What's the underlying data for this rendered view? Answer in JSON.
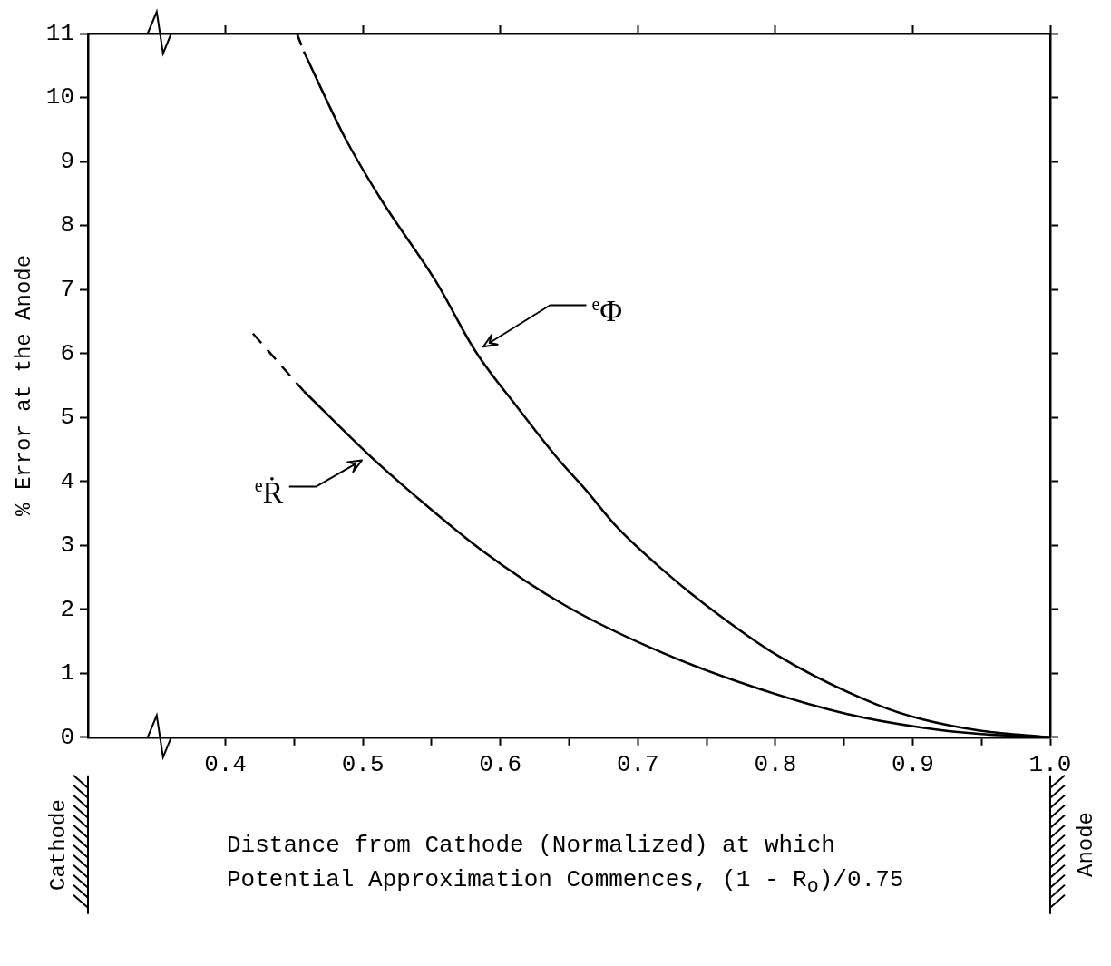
{
  "chart_data": {
    "type": "line",
    "ylabel": "% Error at the Anode",
    "xlabel": "Distance from Cathode (Normalized) at which Potential Approximation Commences, (1 - R$_{o}$)/0.75",
    "annotations": [
      "Cathode",
      "Anode"
    ],
    "marker": "none",
    "xlim": [
      0.3,
      1.0
    ],
    "xticks": [
      0.4,
      {
        "value": 0.45,
        "label": null
      },
      0.5,
      {
        "value": 0.55,
        "label": null
      },
      0.6,
      {
        "value": 0.65,
        "label": null
      },
      0.7,
      {
        "value": 0.75,
        "label": null
      },
      0.8,
      {
        "value": 0.85,
        "label": null
      },
      0.9,
      {
        "value": 0.95,
        "label": null
      },
      {
        "value": 1,
        "label": "1.0"
      }
    ],
    "ylim": [
      0,
      11
    ],
    "yticks": [
      0,
      1,
      2,
      3,
      4,
      5,
      6,
      7,
      8,
      9,
      10,
      11
    ],
    "series": [
      {
        "color": "#000000",
        "line_style": "dashed",
        "x": [
          0.452,
          0.457
        ],
        "values": [
          11.0,
          10.72
        ]
      },
      {
        "name": "$^{e}$Φ",
        "color": "#000000",
        "line_style": "solid",
        "x": [
          0.457,
          0.487,
          0.514,
          0.553,
          0.582,
          0.613,
          0.642,
          0.662,
          0.685,
          0.719,
          0.748,
          0.803,
          0.874,
          0.907,
          0.95,
          1.0
        ],
        "values": [
          10.72,
          9.37,
          8.38,
          7.13,
          6.03,
          5.14,
          4.35,
          3.87,
          3.28,
          2.6,
          2.09,
          1.26,
          0.51,
          0.28,
          0.1,
          0
        ]
      },
      {
        "color": "#000000",
        "line_style": "dashed",
        "x": [
          0.42,
          0.457
        ],
        "values": [
          6.31,
          5.41
        ]
      },
      {
        "name": "$^{e}$Ṙ",
        "color": "#000000",
        "line_style": "solid",
        "x": [
          0.457,
          0.505,
          0.536,
          0.586,
          0.648,
          0.719,
          0.785,
          0.851,
          0.907,
          0.95,
          1.0
        ],
        "values": [
          5.41,
          4.4,
          3.81,
          2.93,
          2.05,
          1.31,
          0.78,
          0.37,
          0.15,
          0.05,
          0
        ]
      }
    ]
  }
}
